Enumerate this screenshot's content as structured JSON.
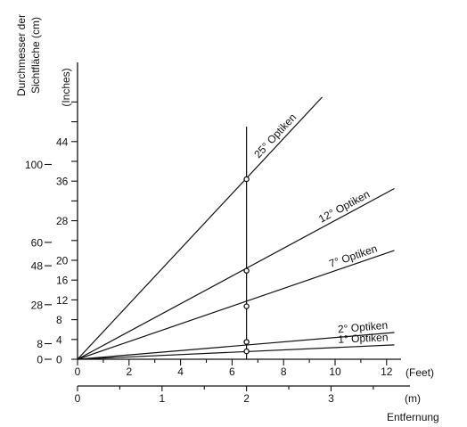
{
  "chart_data": {
    "type": "line",
    "y_title_cm": [
      "Durchmesser der",
      "Sichtfläche (cm)"
    ],
    "y_title_inches": "(Inches)",
    "x_unit_feet": "(Feet)",
    "x_unit_m": "(m)",
    "x_title": "Entfernung",
    "y_inches_ticks": [
      "0",
      "4",
      "8",
      "12",
      "16",
      "20",
      "28",
      "36",
      "44"
    ],
    "y_inches_values": [
      0,
      4,
      8,
      12,
      16,
      20,
      28,
      36,
      44
    ],
    "y_inches_minor": [
      24,
      32,
      40,
      48,
      52
    ],
    "y_cm_ticks": [
      "0",
      "8",
      "28",
      "48",
      "60",
      "100"
    ],
    "y_cm_values": [
      0,
      8,
      28,
      48,
      60,
      100
    ],
    "x_feet_ticks": [
      "0",
      "2",
      "4",
      "6",
      "8",
      "10",
      "12"
    ],
    "x_feet_values": [
      0,
      2,
      4,
      6,
      8,
      10,
      12
    ],
    "x_m_ticks": [
      "0",
      "1",
      "2",
      "3"
    ],
    "x_m_values": [
      0,
      1,
      2,
      3
    ],
    "xlim_feet": [
      0,
      12.7
    ],
    "ylim_inches": [
      0,
      52
    ],
    "series": [
      {
        "name": "25° Optiken",
        "values": [
          [
            0,
            0
          ],
          [
            9.5,
            53
          ]
        ]
      },
      {
        "name": "12° Optiken",
        "values": [
          [
            0,
            0
          ],
          [
            12.3,
            34.5
          ]
        ]
      },
      {
        "name": "7° Optiken",
        "values": [
          [
            0,
            0
          ],
          [
            12.3,
            22
          ]
        ]
      },
      {
        "name": "2° Optiken",
        "values": [
          [
            0,
            0
          ],
          [
            12.3,
            5.4
          ]
        ]
      },
      {
        "name": "1° Optiken",
        "values": [
          [
            0,
            0
          ],
          [
            12.3,
            2.9
          ]
        ]
      }
    ],
    "reference_distance_m": 2,
    "reference_points_inches": [
      36.4,
      17.9,
      10.7,
      3.5,
      1.6
    ],
    "reference_line_inches": [
      0,
      47
    ]
  }
}
